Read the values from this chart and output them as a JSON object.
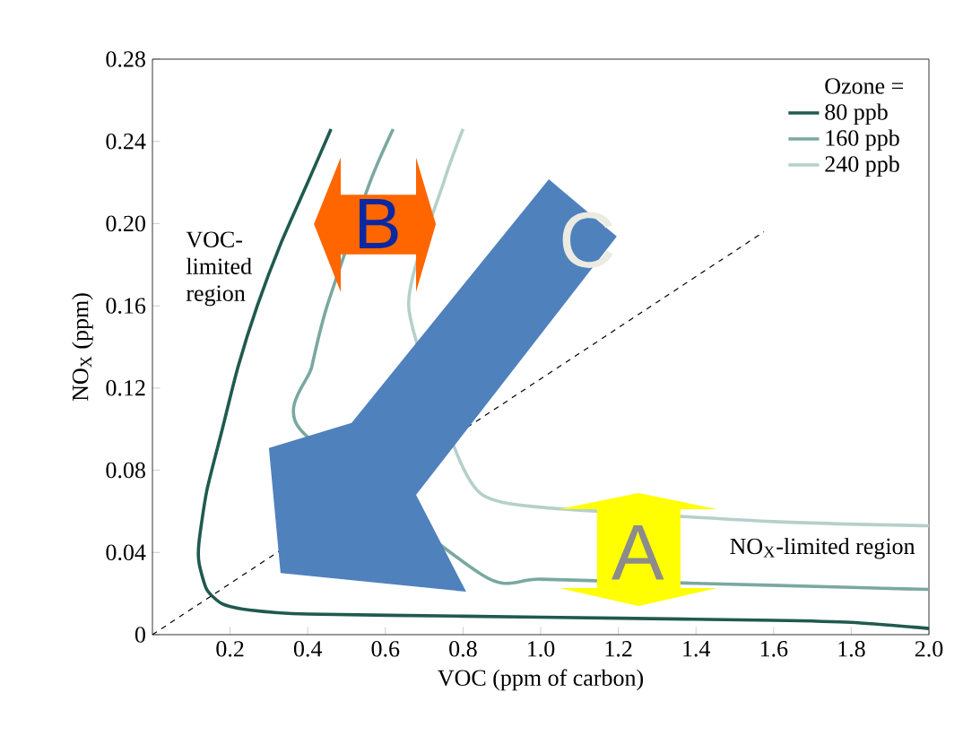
{
  "chart_data": {
    "type": "line",
    "xlabel": "VOC (ppm of carbon)",
    "ylabel": "NO$_{X}$ (ppm)",
    "legend_title": "Ozone =",
    "legend": "top right",
    "xlim": [
      0,
      2.0
    ],
    "ylim": [
      0,
      0.28
    ],
    "xticks": [
      0.2,
      0.4,
      0.6,
      0.8,
      {
        "value": 1.0,
        "label": "1.0"
      },
      1.2,
      1.4,
      1.6,
      1.8,
      {
        "value": 2.0,
        "label": "2.0"
      }
    ],
    "yticks": [
      0,
      0.04,
      0.08,
      0.12,
      0.16,
      {
        "value": 0.2,
        "label": "0.20"
      },
      0.24,
      0.28
    ],
    "annotations": [
      "VOC-limited region",
      "NO$_{X}$-limited region",
      "A",
      "B",
      "C"
    ],
    "series": [
      {
        "name": "80 ppb",
        "color": "#1f5a4e",
        "x": [
          0.46,
          0.4,
          0.33,
          0.27,
          0.22,
          0.18,
          0.14,
          0.12,
          0.12,
          0.14,
          0.18,
          0.25,
          0.4,
          0.8,
          1.2,
          1.6,
          1.8,
          2.0
        ],
        "values": [
          0.246,
          0.22,
          0.19,
          0.16,
          0.13,
          0.1,
          0.07,
          0.045,
          0.035,
          0.022,
          0.015,
          0.012,
          0.01,
          0.009,
          0.008,
          0.007,
          0.006,
          0.003
        ]
      },
      {
        "name": "160 ppb",
        "color": "#7aa8a0",
        "x": [
          0.62,
          0.56,
          0.45,
          0.41,
          0.38,
          0.85,
          1.0,
          1.4,
          1.8,
          2.0
        ],
        "values": [
          0.246,
          0.22,
          0.16,
          0.13,
          0.1,
          0.029,
          0.027,
          0.025,
          0.023,
          0.022
        ]
      },
      {
        "name": "240 ppb",
        "color": "#b5d0cb",
        "x": [
          0.8,
          0.75,
          0.66,
          0.78,
          0.85,
          1.0,
          1.6,
          2.0
        ],
        "values": [
          0.246,
          0.22,
          0.16,
          0.09,
          0.068,
          0.062,
          0.055,
          0.053
        ]
      },
      {
        "color": "#000000",
        "line_style": "dashed",
        "x": [
          0,
          1.575
        ],
        "values": [
          0,
          0.196
        ]
      }
    ]
  }
}
